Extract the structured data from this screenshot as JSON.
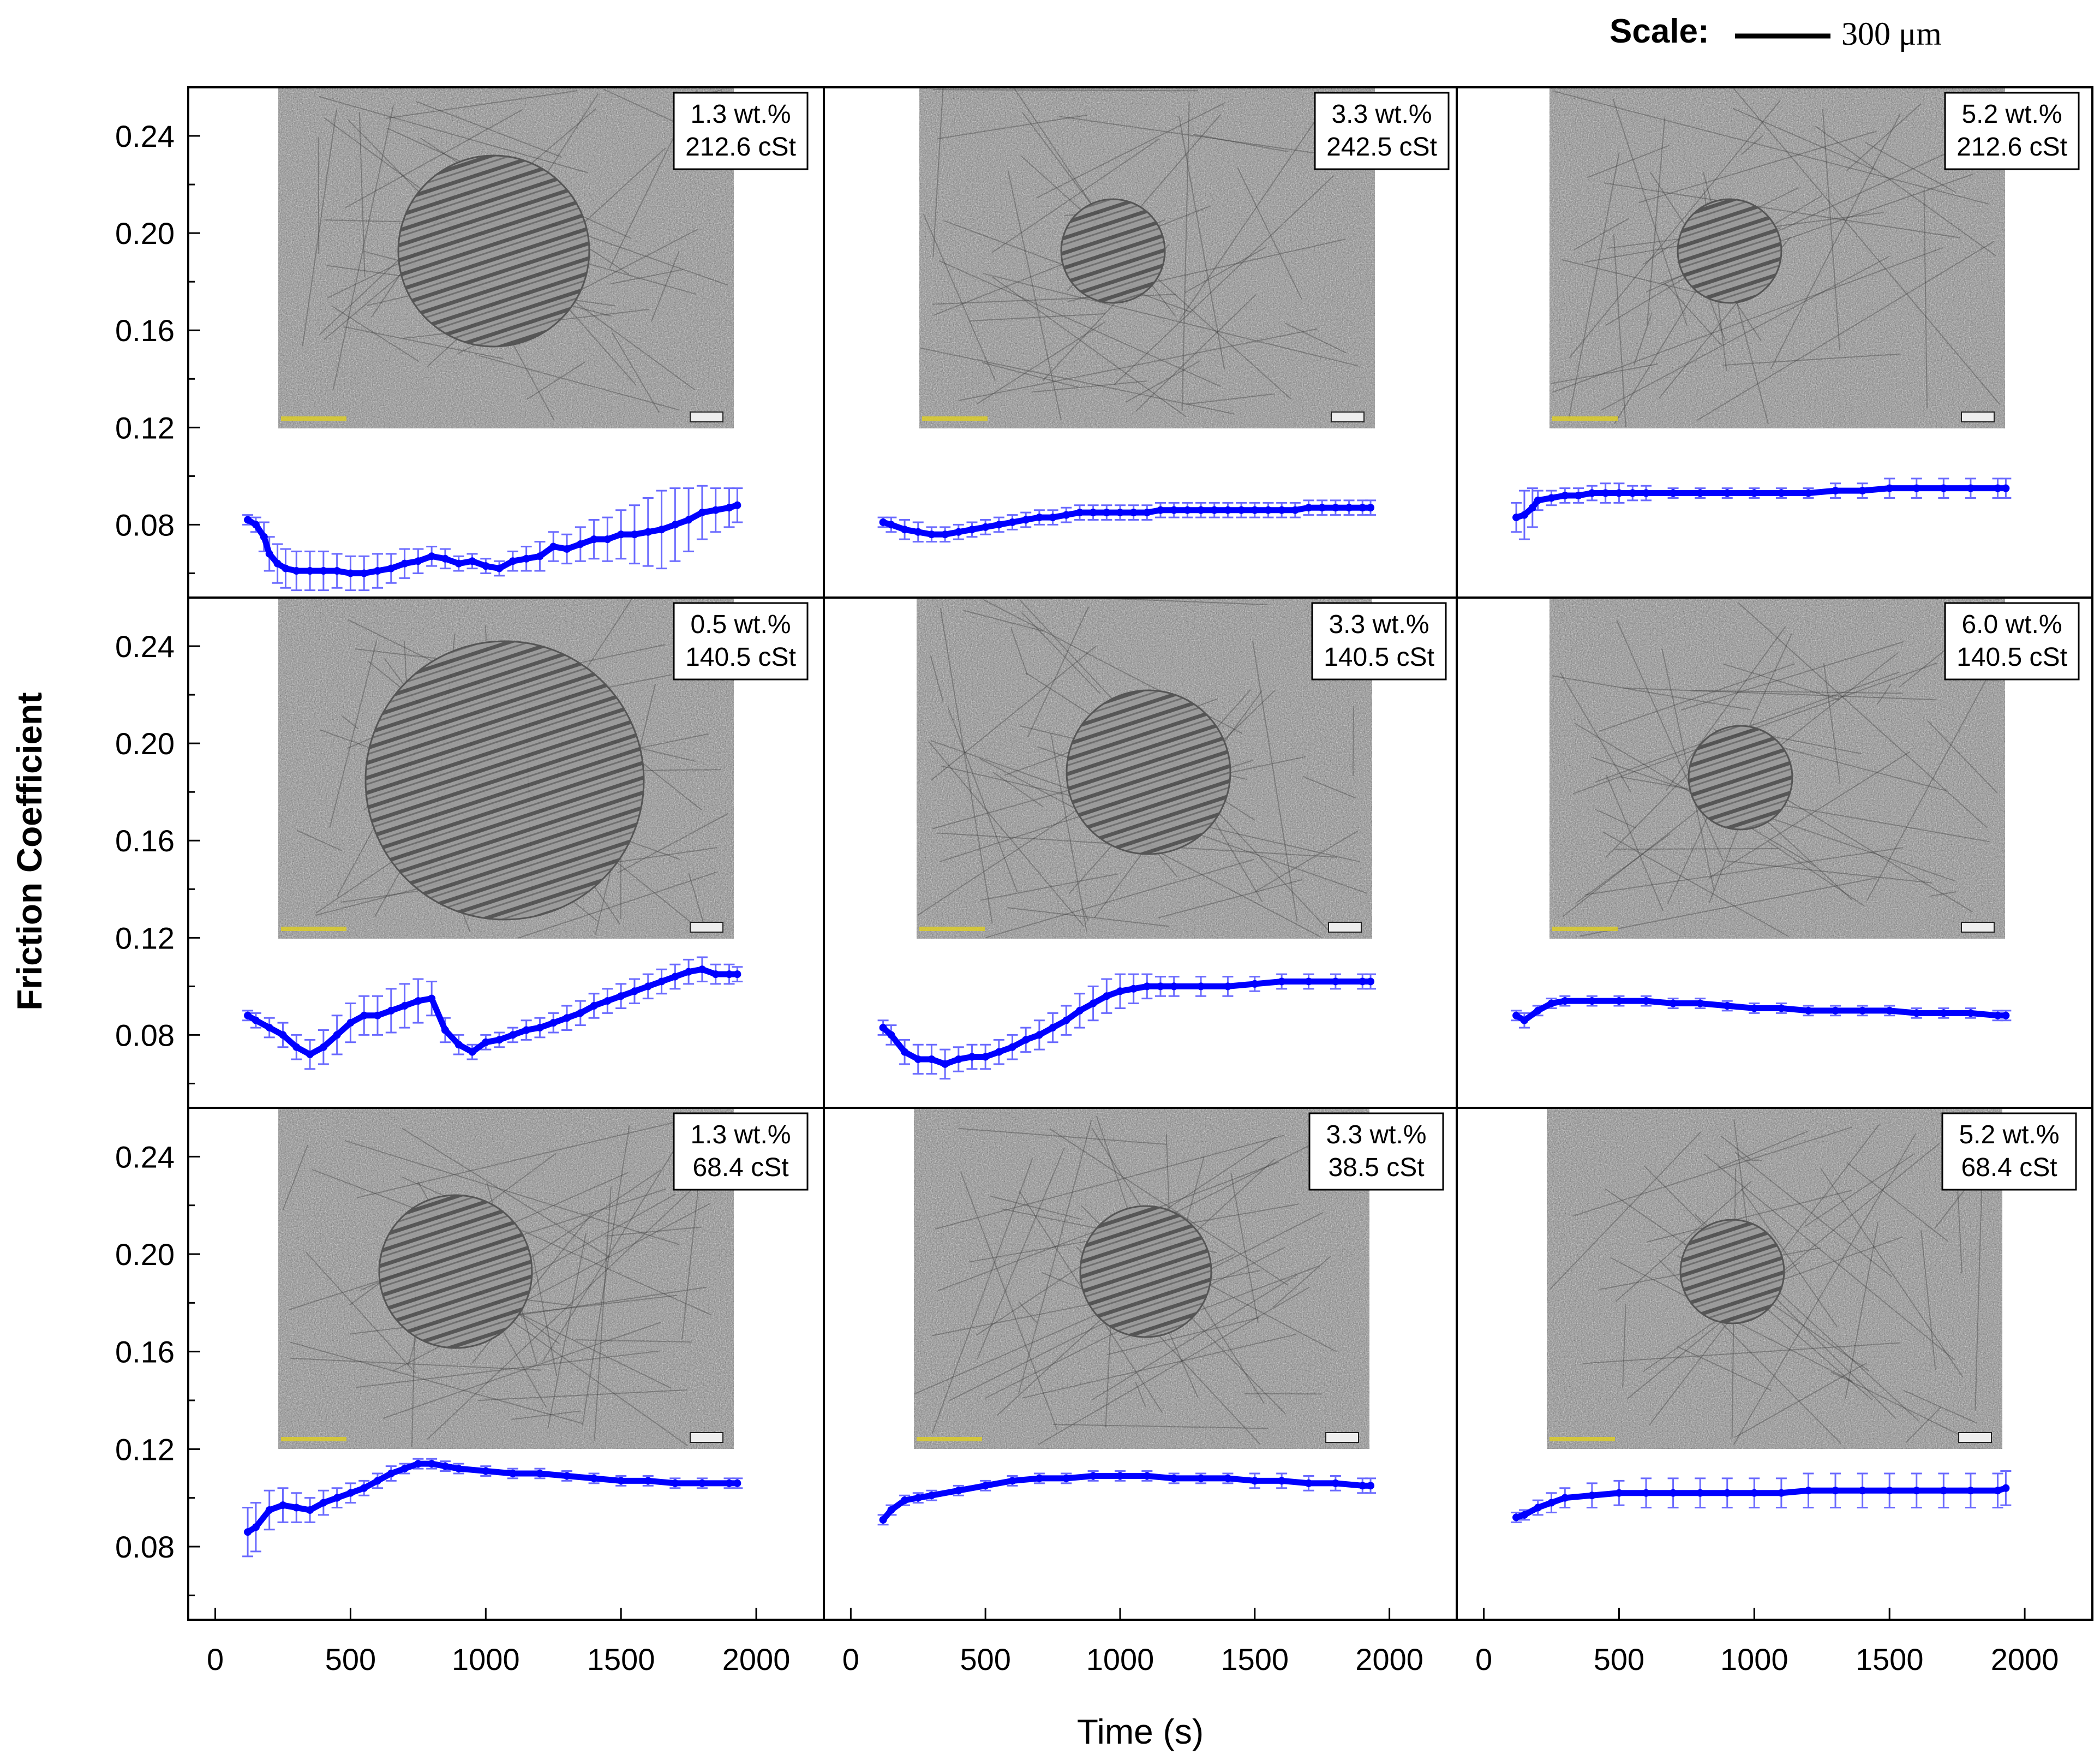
{
  "figure": {
    "scale_label": "Scale:",
    "scale_value": "300 μm",
    "ylabel": "Friction Coefficient",
    "xlabel": "Time (s)",
    "yticks": [
      "0.24",
      "0.20",
      "0.16",
      "0.12",
      "0.08"
    ],
    "xticks": [
      "0",
      "500",
      "1000",
      "1500",
      "2000"
    ],
    "series_color": "#0000ff",
    "errorbar_color": "#6a6aff"
  },
  "chart_data": [
    {
      "type": "line",
      "row": 0,
      "col": 0,
      "ylim": [
        0.05,
        0.26
      ],
      "xlim": [
        -100,
        2250
      ],
      "label_line1": "1.3 wt.%",
      "label_line2": "212.6 cSt",
      "x": [
        120,
        150,
        180,
        200,
        230,
        260,
        300,
        350,
        400,
        450,
        500,
        550,
        600,
        650,
        700,
        750,
        800,
        850,
        900,
        950,
        1000,
        1050,
        1100,
        1150,
        1200,
        1250,
        1300,
        1350,
        1400,
        1450,
        1500,
        1550,
        1600,
        1650,
        1700,
        1750,
        1800,
        1850,
        1900,
        1930
      ],
      "y": [
        0.082,
        0.08,
        0.075,
        0.068,
        0.064,
        0.062,
        0.061,
        0.061,
        0.061,
        0.061,
        0.06,
        0.06,
        0.061,
        0.062,
        0.064,
        0.065,
        0.067,
        0.066,
        0.064,
        0.065,
        0.063,
        0.062,
        0.065,
        0.066,
        0.067,
        0.071,
        0.07,
        0.072,
        0.074,
        0.074,
        0.076,
        0.076,
        0.077,
        0.078,
        0.08,
        0.082,
        0.085,
        0.086,
        0.087,
        0.088
      ],
      "err": [
        0.002,
        0.003,
        0.006,
        0.007,
        0.008,
        0.008,
        0.008,
        0.008,
        0.008,
        0.007,
        0.007,
        0.007,
        0.007,
        0.006,
        0.006,
        0.005,
        0.004,
        0.004,
        0.003,
        0.003,
        0.003,
        0.003,
        0.004,
        0.005,
        0.006,
        0.006,
        0.006,
        0.007,
        0.008,
        0.009,
        0.01,
        0.012,
        0.014,
        0.016,
        0.015,
        0.013,
        0.011,
        0.009,
        0.008,
        0.007
      ]
    },
    {
      "type": "line",
      "row": 0,
      "col": 1,
      "ylim": [
        0.05,
        0.26
      ],
      "xlim": [
        -100,
        2250
      ],
      "label_line1": "3.3 wt.%",
      "label_line2": "242.5 cSt",
      "x": [
        120,
        150,
        200,
        250,
        300,
        350,
        400,
        450,
        500,
        550,
        600,
        650,
        700,
        750,
        800,
        850,
        900,
        950,
        1000,
        1050,
        1100,
        1150,
        1200,
        1250,
        1300,
        1350,
        1400,
        1450,
        1500,
        1550,
        1600,
        1650,
        1700,
        1750,
        1800,
        1850,
        1900,
        1930
      ],
      "y": [
        0.081,
        0.08,
        0.078,
        0.077,
        0.076,
        0.076,
        0.077,
        0.078,
        0.079,
        0.08,
        0.081,
        0.082,
        0.083,
        0.083,
        0.084,
        0.085,
        0.085,
        0.085,
        0.085,
        0.085,
        0.085,
        0.086,
        0.086,
        0.086,
        0.086,
        0.086,
        0.086,
        0.086,
        0.086,
        0.086,
        0.086,
        0.086,
        0.087,
        0.087,
        0.087,
        0.087,
        0.087,
        0.087
      ],
      "err": [
        0.002,
        0.003,
        0.004,
        0.004,
        0.003,
        0.003,
        0.003,
        0.003,
        0.003,
        0.003,
        0.003,
        0.003,
        0.003,
        0.003,
        0.003,
        0.003,
        0.003,
        0.003,
        0.003,
        0.003,
        0.003,
        0.003,
        0.003,
        0.003,
        0.003,
        0.003,
        0.003,
        0.003,
        0.003,
        0.003,
        0.003,
        0.003,
        0.003,
        0.003,
        0.003,
        0.003,
        0.003,
        0.003
      ]
    },
    {
      "type": "line",
      "row": 0,
      "col": 2,
      "ylim": [
        0.05,
        0.26
      ],
      "xlim": [
        -100,
        2250
      ],
      "label_line1": "5.2 wt.%",
      "label_line2": "212.6 cSt",
      "x": [
        120,
        150,
        180,
        200,
        250,
        300,
        350,
        400,
        450,
        500,
        550,
        600,
        700,
        800,
        900,
        1000,
        1100,
        1200,
        1300,
        1400,
        1500,
        1600,
        1700,
        1800,
        1900,
        1930
      ],
      "y": [
        0.083,
        0.084,
        0.087,
        0.09,
        0.091,
        0.092,
        0.092,
        0.093,
        0.093,
        0.093,
        0.093,
        0.093,
        0.093,
        0.093,
        0.093,
        0.093,
        0.093,
        0.093,
        0.094,
        0.094,
        0.095,
        0.095,
        0.095,
        0.095,
        0.095,
        0.095
      ],
      "err": [
        0.006,
        0.01,
        0.008,
        0.004,
        0.003,
        0.003,
        0.003,
        0.003,
        0.004,
        0.004,
        0.003,
        0.003,
        0.002,
        0.002,
        0.002,
        0.002,
        0.002,
        0.002,
        0.003,
        0.003,
        0.004,
        0.004,
        0.004,
        0.004,
        0.004,
        0.004
      ]
    },
    {
      "type": "line",
      "row": 1,
      "col": 0,
      "ylim": [
        0.05,
        0.26
      ],
      "xlim": [
        -100,
        2250
      ],
      "label_line1": "0.5 wt.%",
      "label_line2": "140.5 cSt",
      "x": [
        120,
        150,
        200,
        250,
        300,
        350,
        400,
        450,
        500,
        550,
        600,
        650,
        700,
        750,
        800,
        850,
        900,
        950,
        1000,
        1050,
        1100,
        1150,
        1200,
        1250,
        1300,
        1350,
        1400,
        1450,
        1500,
        1550,
        1600,
        1650,
        1700,
        1750,
        1800,
        1850,
        1900,
        1930
      ],
      "y": [
        0.088,
        0.086,
        0.083,
        0.08,
        0.075,
        0.072,
        0.075,
        0.08,
        0.085,
        0.088,
        0.088,
        0.09,
        0.092,
        0.094,
        0.095,
        0.082,
        0.076,
        0.073,
        0.077,
        0.078,
        0.08,
        0.082,
        0.083,
        0.085,
        0.087,
        0.089,
        0.092,
        0.094,
        0.096,
        0.098,
        0.1,
        0.102,
        0.104,
        0.106,
        0.107,
        0.105,
        0.105,
        0.105
      ],
      "err": [
        0.002,
        0.003,
        0.004,
        0.005,
        0.005,
        0.006,
        0.007,
        0.008,
        0.008,
        0.008,
        0.008,
        0.009,
        0.009,
        0.009,
        0.007,
        0.005,
        0.004,
        0.003,
        0.003,
        0.003,
        0.003,
        0.004,
        0.004,
        0.004,
        0.005,
        0.005,
        0.005,
        0.005,
        0.005,
        0.005,
        0.005,
        0.005,
        0.005,
        0.005,
        0.005,
        0.004,
        0.004,
        0.003
      ]
    },
    {
      "type": "line",
      "row": 1,
      "col": 1,
      "ylim": [
        0.05,
        0.26
      ],
      "xlim": [
        -100,
        2250
      ],
      "label_line1": "3.3 wt.%",
      "label_line2": "140.5 cSt",
      "x": [
        120,
        150,
        200,
        250,
        300,
        350,
        400,
        450,
        500,
        550,
        600,
        650,
        700,
        750,
        800,
        850,
        900,
        950,
        1000,
        1050,
        1100,
        1150,
        1200,
        1300,
        1400,
        1500,
        1600,
        1700,
        1800,
        1900,
        1930
      ],
      "y": [
        0.083,
        0.08,
        0.073,
        0.07,
        0.07,
        0.068,
        0.07,
        0.071,
        0.071,
        0.073,
        0.075,
        0.078,
        0.08,
        0.083,
        0.086,
        0.09,
        0.093,
        0.096,
        0.098,
        0.099,
        0.1,
        0.1,
        0.1,
        0.1,
        0.1,
        0.101,
        0.102,
        0.102,
        0.102,
        0.102,
        0.102
      ],
      "err": [
        0.003,
        0.004,
        0.005,
        0.006,
        0.006,
        0.006,
        0.005,
        0.005,
        0.005,
        0.005,
        0.005,
        0.005,
        0.006,
        0.006,
        0.006,
        0.007,
        0.007,
        0.007,
        0.007,
        0.006,
        0.005,
        0.004,
        0.004,
        0.004,
        0.004,
        0.003,
        0.003,
        0.003,
        0.003,
        0.003,
        0.003
      ]
    },
    {
      "type": "line",
      "row": 1,
      "col": 2,
      "ylim": [
        0.05,
        0.26
      ],
      "xlim": [
        -100,
        2250
      ],
      "label_line1": "6.0 wt.%",
      "label_line2": "140.5 cSt",
      "x": [
        120,
        150,
        200,
        250,
        300,
        400,
        500,
        600,
        700,
        800,
        900,
        1000,
        1100,
        1200,
        1300,
        1400,
        1500,
        1600,
        1700,
        1800,
        1900,
        1930
      ],
      "y": [
        0.088,
        0.086,
        0.09,
        0.093,
        0.094,
        0.094,
        0.094,
        0.094,
        0.093,
        0.093,
        0.092,
        0.091,
        0.091,
        0.09,
        0.09,
        0.09,
        0.09,
        0.089,
        0.089,
        0.089,
        0.088,
        0.088
      ],
      "err": [
        0.002,
        0.003,
        0.002,
        0.002,
        0.002,
        0.002,
        0.002,
        0.002,
        0.002,
        0.002,
        0.002,
        0.002,
        0.002,
        0.002,
        0.002,
        0.002,
        0.002,
        0.002,
        0.002,
        0.002,
        0.002,
        0.002
      ]
    },
    {
      "type": "line",
      "row": 2,
      "col": 0,
      "ylim": [
        0.05,
        0.26
      ],
      "xlim": [
        -100,
        2250
      ],
      "label_line1": "1.3 wt.%",
      "label_line2": "68.4 cSt",
      "x": [
        120,
        150,
        200,
        250,
        300,
        350,
        400,
        450,
        500,
        550,
        600,
        650,
        700,
        750,
        800,
        850,
        900,
        1000,
        1100,
        1200,
        1300,
        1400,
        1500,
        1600,
        1700,
        1800,
        1900,
        1930
      ],
      "y": [
        0.086,
        0.088,
        0.095,
        0.097,
        0.096,
        0.095,
        0.098,
        0.1,
        0.102,
        0.104,
        0.107,
        0.11,
        0.112,
        0.114,
        0.114,
        0.113,
        0.112,
        0.111,
        0.11,
        0.11,
        0.109,
        0.108,
        0.107,
        0.107,
        0.106,
        0.106,
        0.106,
        0.106
      ],
      "err": [
        0.01,
        0.01,
        0.008,
        0.007,
        0.006,
        0.005,
        0.005,
        0.004,
        0.004,
        0.003,
        0.003,
        0.003,
        0.002,
        0.002,
        0.002,
        0.002,
        0.002,
        0.002,
        0.002,
        0.002,
        0.002,
        0.002,
        0.002,
        0.002,
        0.002,
        0.002,
        0.002,
        0.002
      ]
    },
    {
      "type": "line",
      "row": 2,
      "col": 1,
      "ylim": [
        0.05,
        0.26
      ],
      "xlim": [
        -100,
        2250
      ],
      "label_line1": "3.3 wt.%",
      "label_line2": "38.5 cSt",
      "x": [
        120,
        150,
        200,
        250,
        300,
        400,
        500,
        600,
        700,
        800,
        900,
        1000,
        1100,
        1200,
        1300,
        1400,
        1500,
        1600,
        1700,
        1800,
        1900,
        1930
      ],
      "y": [
        0.091,
        0.095,
        0.099,
        0.1,
        0.101,
        0.103,
        0.105,
        0.107,
        0.108,
        0.108,
        0.109,
        0.109,
        0.109,
        0.108,
        0.108,
        0.108,
        0.107,
        0.107,
        0.106,
        0.106,
        0.105,
        0.105
      ],
      "err": [
        0.002,
        0.002,
        0.002,
        0.002,
        0.002,
        0.002,
        0.002,
        0.002,
        0.002,
        0.002,
        0.002,
        0.002,
        0.002,
        0.002,
        0.002,
        0.002,
        0.003,
        0.003,
        0.003,
        0.003,
        0.003,
        0.003
      ]
    },
    {
      "type": "line",
      "row": 2,
      "col": 2,
      "ylim": [
        0.05,
        0.26
      ],
      "xlim": [
        -100,
        2250
      ],
      "label_line1": "5.2 wt.%",
      "label_line2": "68.4 cSt",
      "x": [
        120,
        150,
        200,
        250,
        300,
        400,
        500,
        600,
        700,
        800,
        900,
        1000,
        1100,
        1200,
        1300,
        1400,
        1500,
        1600,
        1700,
        1800,
        1900,
        1930
      ],
      "y": [
        0.092,
        0.093,
        0.096,
        0.098,
        0.1,
        0.101,
        0.102,
        0.102,
        0.102,
        0.102,
        0.102,
        0.102,
        0.102,
        0.103,
        0.103,
        0.103,
        0.103,
        0.103,
        0.103,
        0.103,
        0.103,
        0.104
      ],
      "err": [
        0.002,
        0.002,
        0.003,
        0.004,
        0.004,
        0.005,
        0.005,
        0.006,
        0.006,
        0.006,
        0.006,
        0.006,
        0.006,
        0.007,
        0.007,
        0.007,
        0.007,
        0.007,
        0.007,
        0.007,
        0.007,
        0.007
      ]
    }
  ]
}
